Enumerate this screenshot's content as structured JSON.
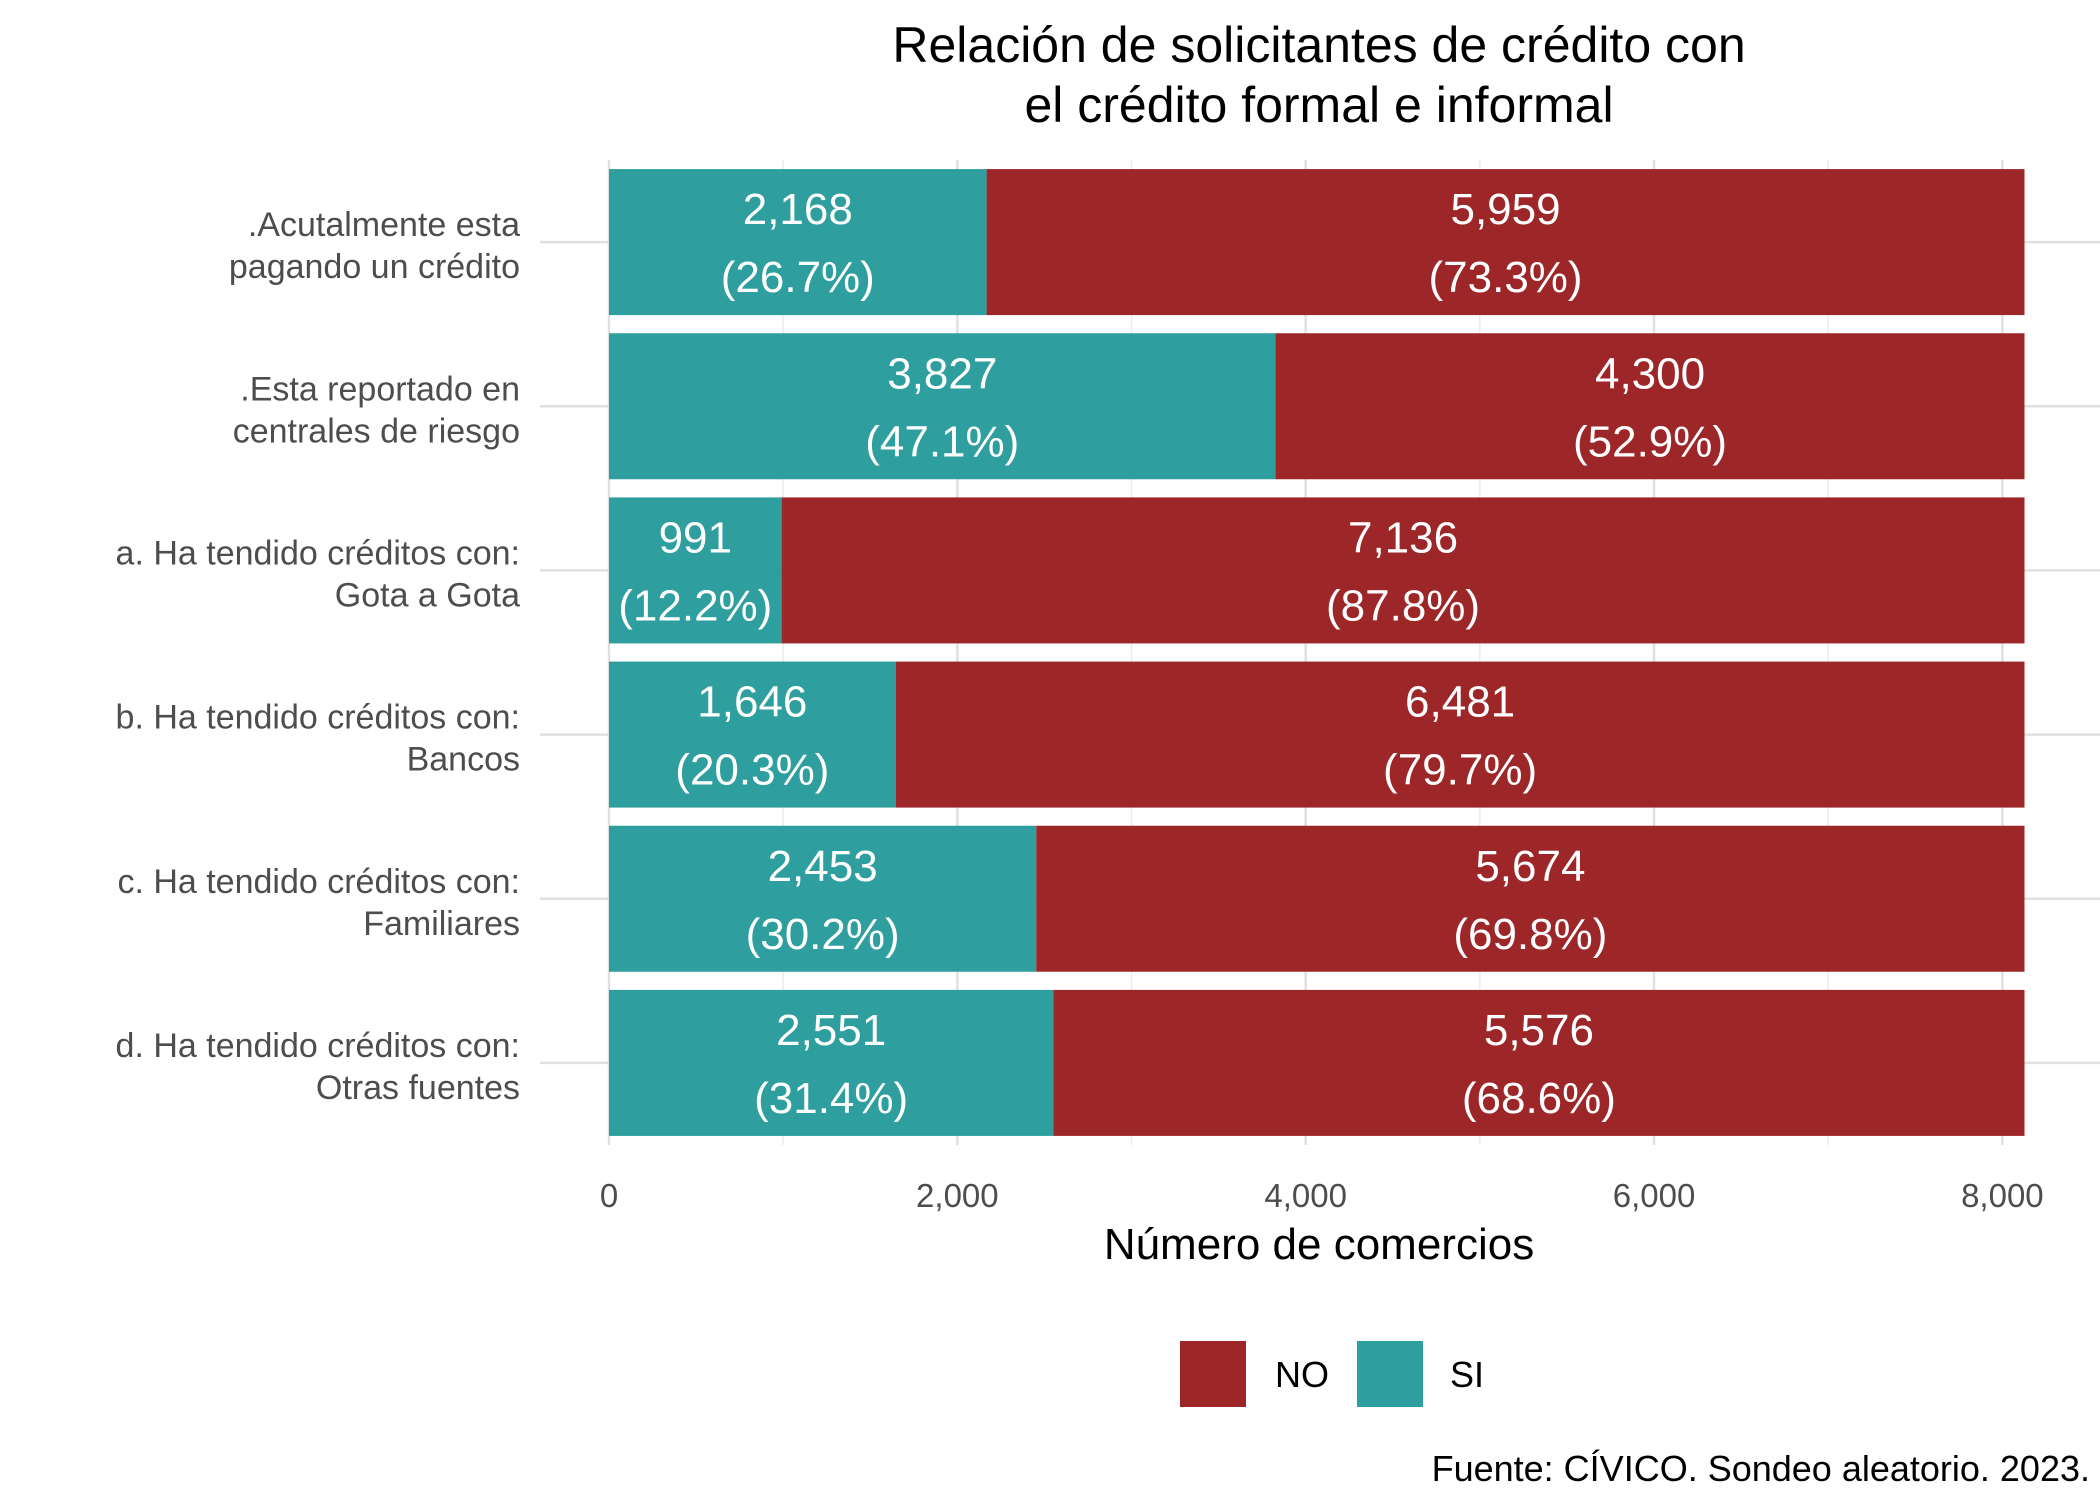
{
  "chart_data": {
    "type": "bar",
    "orientation": "horizontal",
    "stacked": true,
    "title": [
      "Relación de solicitantes de crédito con",
      "el crédito formal e informal"
    ],
    "xlabel": "Número de comercios",
    "ylabel": "",
    "xlim": [
      0,
      8127
    ],
    "xticks": [
      {
        "value": 0,
        "label": "0"
      },
      {
        "value": 2000,
        "label": "2,000"
      },
      {
        "value": 4000,
        "label": "4,000"
      },
      {
        "value": 6000,
        "label": "6,000"
      },
      {
        "value": 8000,
        "label": "8,000"
      }
    ],
    "grid": true,
    "legend_position": "bottom",
    "categories": [
      [
        ".Acutalmente esta",
        "pagando un crédito"
      ],
      [
        ".Esta reportado en",
        "centrales de riesgo"
      ],
      [
        "a. Ha tendido créditos con:",
        "Gota a Gota"
      ],
      [
        "b. Ha tendido créditos con:",
        "Bancos"
      ],
      [
        "c. Ha tendido créditos con:",
        "Familiares"
      ],
      [
        "d. Ha tendido créditos con:",
        "Otras fuentes"
      ]
    ],
    "series": [
      {
        "name": "SI",
        "color": "#2e9e9e",
        "values": [
          2168,
          3827,
          991,
          1646,
          2453,
          2551
        ],
        "labels": [
          "2,168",
          "3,827",
          "991",
          "1,646",
          "2,453",
          "2,551"
        ],
        "percent_labels": [
          "(26.7%)",
          "(47.1%)",
          "(12.2%)",
          "(20.3%)",
          "(30.2%)",
          "(31.4%)"
        ]
      },
      {
        "name": "NO",
        "color": "#9c2628",
        "values": [
          5959,
          4300,
          7136,
          6481,
          5674,
          5576
        ],
        "labels": [
          "5,959",
          "4,300",
          "7,136",
          "6,481",
          "5,674",
          "5,576"
        ],
        "percent_labels": [
          "(73.3%)",
          "(52.9%)",
          "(87.8%)",
          "(79.7%)",
          "(69.8%)",
          "(68.6%)"
        ]
      }
    ],
    "legend_order": [
      "NO",
      "SI"
    ]
  },
  "caption": "Fuente: CÍVICO. Sondeo aleatorio. 2023."
}
